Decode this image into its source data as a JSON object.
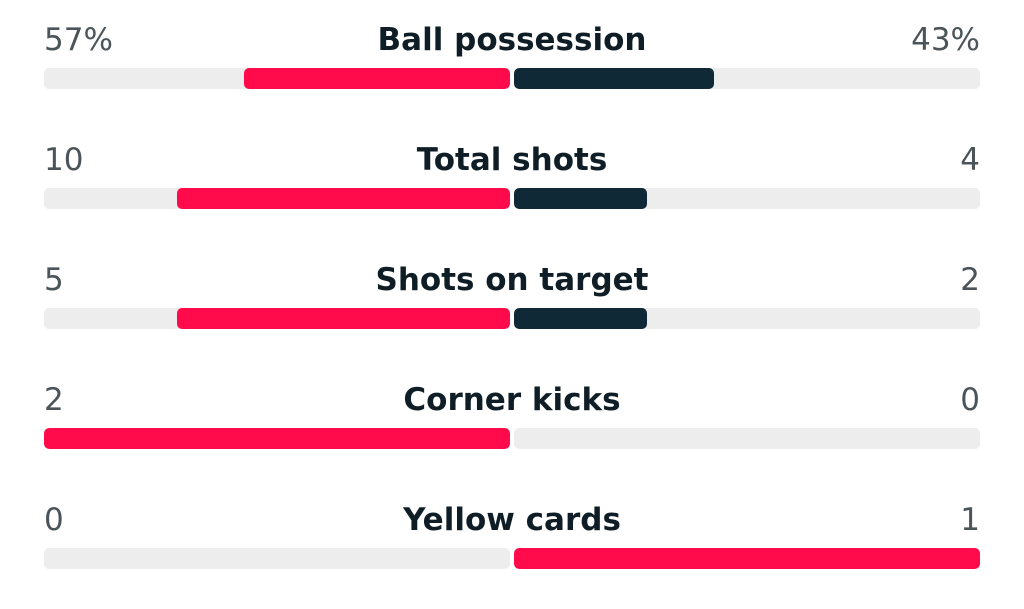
{
  "colors": {
    "highlight": "#ff0a4a",
    "secondary": "#0f2a36",
    "track": "#ededed"
  },
  "stats": [
    {
      "label": "Ball possession",
      "home": "57%",
      "away": "43%",
      "home_fill": 0.57,
      "away_fill": 0.43,
      "home_color": "highlight",
      "away_color": "secondary"
    },
    {
      "label": "Total shots",
      "home": "10",
      "away": "4",
      "home_fill": 0.714,
      "away_fill": 0.286,
      "home_color": "highlight",
      "away_color": "secondary"
    },
    {
      "label": "Shots on target",
      "home": "5",
      "away": "2",
      "home_fill": 0.714,
      "away_fill": 0.286,
      "home_color": "highlight",
      "away_color": "secondary"
    },
    {
      "label": "Corner kicks",
      "home": "2",
      "away": "0",
      "home_fill": 1.0,
      "away_fill": 0.0,
      "home_color": "highlight",
      "away_color": "secondary"
    },
    {
      "label": "Yellow cards",
      "home": "0",
      "away": "1",
      "home_fill": 0.0,
      "away_fill": 1.0,
      "home_color": "highlight",
      "away_color": "highlight"
    }
  ]
}
